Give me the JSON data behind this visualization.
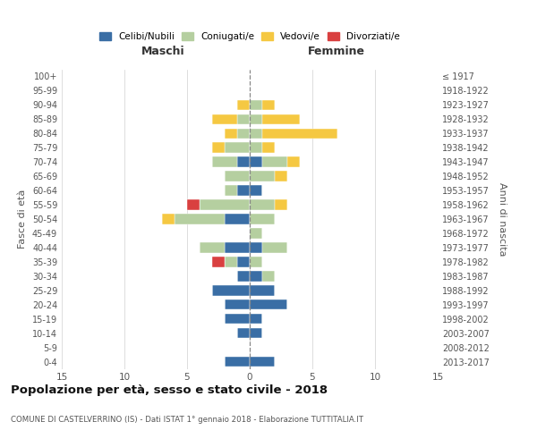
{
  "age_groups": [
    "0-4",
    "5-9",
    "10-14",
    "15-19",
    "20-24",
    "25-29",
    "30-34",
    "35-39",
    "40-44",
    "45-49",
    "50-54",
    "55-59",
    "60-64",
    "65-69",
    "70-74",
    "75-79",
    "80-84",
    "85-89",
    "90-94",
    "95-99",
    "100+"
  ],
  "birth_years": [
    "2013-2017",
    "2008-2012",
    "2003-2007",
    "1998-2002",
    "1993-1997",
    "1988-1992",
    "1983-1987",
    "1978-1982",
    "1973-1977",
    "1968-1972",
    "1963-1967",
    "1958-1962",
    "1953-1957",
    "1948-1952",
    "1943-1947",
    "1938-1942",
    "1933-1937",
    "1928-1932",
    "1923-1927",
    "1918-1922",
    "≤ 1917"
  ],
  "males": {
    "celibi": [
      2,
      0,
      1,
      2,
      2,
      3,
      1,
      1,
      2,
      0,
      2,
      0,
      1,
      0,
      1,
      0,
      0,
      0,
      0,
      0,
      0
    ],
    "coniugati": [
      0,
      0,
      0,
      0,
      0,
      0,
      0,
      1,
      2,
      0,
      4,
      4,
      1,
      2,
      2,
      2,
      1,
      1,
      0,
      0,
      0
    ],
    "vedovi": [
      0,
      0,
      0,
      0,
      0,
      0,
      0,
      0,
      0,
      0,
      1,
      0,
      0,
      0,
      0,
      1,
      1,
      2,
      1,
      0,
      0
    ],
    "divorziati": [
      0,
      0,
      0,
      0,
      0,
      0,
      0,
      1,
      0,
      0,
      0,
      1,
      0,
      0,
      0,
      0,
      0,
      0,
      0,
      0,
      0
    ]
  },
  "females": {
    "nubili": [
      2,
      0,
      1,
      1,
      3,
      2,
      1,
      0,
      1,
      0,
      0,
      0,
      1,
      0,
      1,
      0,
      0,
      0,
      0,
      0,
      0
    ],
    "coniugate": [
      0,
      0,
      0,
      0,
      0,
      0,
      1,
      1,
      2,
      1,
      2,
      2,
      0,
      2,
      2,
      1,
      1,
      1,
      1,
      0,
      0
    ],
    "vedove": [
      0,
      0,
      0,
      0,
      0,
      0,
      0,
      0,
      0,
      0,
      0,
      1,
      0,
      1,
      1,
      1,
      6,
      3,
      1,
      0,
      0
    ],
    "divorziate": [
      0,
      0,
      0,
      0,
      0,
      0,
      0,
      0,
      0,
      0,
      0,
      0,
      0,
      0,
      0,
      0,
      0,
      0,
      0,
      0,
      0
    ]
  },
  "colors": {
    "celibi_nubili": "#3a6ea5",
    "coniugati": "#b5cfa0",
    "vedovi": "#f5c842",
    "divorziati": "#d94040"
  },
  "title": "Popolazione per età, sesso e stato civile - 2018",
  "subtitle": "COMUNE DI CASTELVERRINO (IS) - Dati ISTAT 1° gennaio 2018 - Elaborazione TUTTITALIA.IT",
  "xlabel_left": "Maschi",
  "xlabel_right": "Femmine",
  "ylabel_left": "Fasce di età",
  "ylabel_right": "Anni di nascita",
  "xlim": 15,
  "background_color": "#ffffff",
  "grid_color": "#d0d0d0"
}
